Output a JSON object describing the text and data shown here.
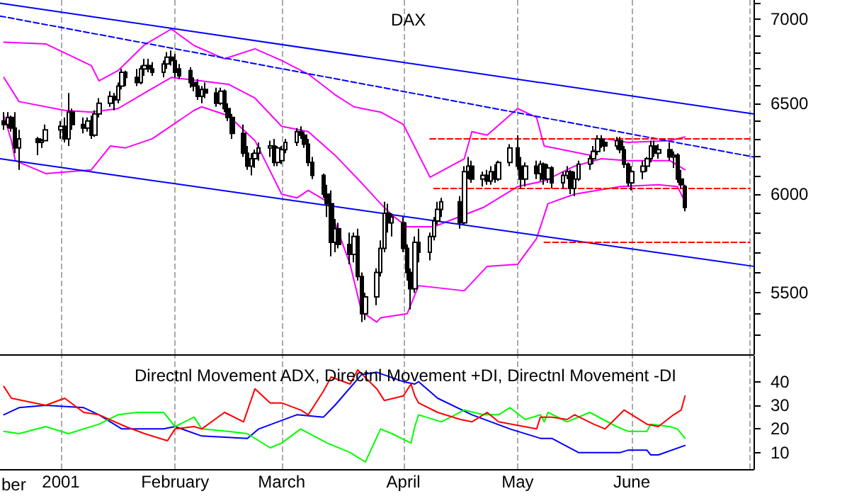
{
  "chart_data": [
    {
      "type": "candlestick",
      "title": "DAX",
      "color": "#000000",
      "log": true,
      "grid": "x",
      "tick_labels": "y",
      "marker": "none",
      "xlim": [
        "2000-12-17",
        "2001-07-03"
      ],
      "xticks": [
        {
          "value": "2001-01-02",
          "label": null
        },
        {
          "value": "2001-02-01",
          "label": null
        },
        {
          "value": "2001-03-01",
          "label": null
        },
        {
          "value": "2001-04-02",
          "label": null
        },
        {
          "value": "2001-05-02",
          "label": null
        },
        {
          "value": "2001-06-01",
          "label": null
        },
        {
          "value": "2001-07-02",
          "label": null
        }
      ],
      "ylim": [
        5210,
        7120
      ],
      "yticks": [
        {
          "value": 5300,
          "label": null
        },
        {
          "value": 5400,
          "label": null
        },
        5500,
        {
          "value": 5600,
          "label": null
        },
        {
          "value": 5700,
          "label": null
        },
        {
          "value": 5800,
          "label": null
        },
        {
          "value": 5900,
          "label": null
        },
        6000,
        {
          "value": 6100,
          "label": null
        },
        {
          "value": 6200,
          "label": null
        },
        {
          "value": 6300,
          "label": null
        },
        {
          "value": 6400,
          "label": null
        },
        6500,
        {
          "value": 6600,
          "label": null
        },
        {
          "value": 6700,
          "label": null
        },
        {
          "value": 6800,
          "label": null
        },
        {
          "value": 6900,
          "label": null
        },
        7000,
        {
          "value": 7100,
          "label": null
        }
      ],
      "x": [
        "2000-12-18",
        "2000-12-19",
        "2000-12-20",
        "2000-12-21",
        "2000-12-22",
        "2000-12-27",
        "2000-12-28",
        "2000-12-29",
        "2001-01-02",
        "2001-01-03",
        "2001-01-04",
        "2001-01-05",
        "2001-01-08",
        "2001-01-09",
        "2001-01-10",
        "2001-01-11",
        "2001-01-12",
        "2001-01-15",
        "2001-01-16",
        "2001-01-17",
        "2001-01-18",
        "2001-01-19",
        "2001-01-22",
        "2001-01-23",
        "2001-01-24",
        "2001-01-25",
        "2001-01-26",
        "2001-01-29",
        "2001-01-30",
        "2001-01-31",
        "2001-02-01",
        "2001-02-02",
        "2001-02-05",
        "2001-02-06",
        "2001-02-07",
        "2001-02-08",
        "2001-02-09",
        "2001-02-12",
        "2001-02-13",
        "2001-02-14",
        "2001-02-15",
        "2001-02-16",
        "2001-02-19",
        "2001-02-20",
        "2001-02-21",
        "2001-02-22",
        "2001-02-23",
        "2001-02-26",
        "2001-02-27",
        "2001-02-28",
        "2001-03-01",
        "2001-03-02",
        "2001-03-05",
        "2001-03-06",
        "2001-03-07",
        "2001-03-08",
        "2001-03-09",
        "2001-03-12",
        "2001-03-13",
        "2001-03-14",
        "2001-03-15",
        "2001-03-16",
        "2001-03-19",
        "2001-03-20",
        "2001-03-21",
        "2001-03-22",
        "2001-03-23",
        "2001-03-26",
        "2001-03-27",
        "2001-03-28",
        "2001-03-29",
        "2001-03-30",
        "2001-04-02",
        "2001-04-03",
        "2001-04-04",
        "2001-04-05",
        "2001-04-06",
        "2001-04-09",
        "2001-04-10",
        "2001-04-11",
        "2001-04-12",
        "2001-04-17",
        "2001-04-18",
        "2001-04-19",
        "2001-04-20",
        "2001-04-23",
        "2001-04-24",
        "2001-04-25",
        "2001-04-26",
        "2001-04-27",
        "2001-04-30",
        "2001-05-02",
        "2001-05-03",
        "2001-05-04",
        "2001-05-07",
        "2001-05-08",
        "2001-05-09",
        "2001-05-10",
        "2001-05-11",
        "2001-05-14",
        "2001-05-15",
        "2001-05-16",
        "2001-05-17",
        "2001-05-18",
        "2001-05-21",
        "2001-05-22",
        "2001-05-23",
        "2001-05-24",
        "2001-05-25",
        "2001-05-28",
        "2001-05-29",
        "2001-05-30",
        "2001-05-31",
        "2001-06-01",
        "2001-06-04",
        "2001-06-05",
        "2001-06-06",
        "2001-06-07",
        "2001-06-08",
        "2001-06-11",
        "2001-06-12",
        "2001-06-13",
        "2001-06-14",
        "2001-06-15"
      ],
      "ohlc": [
        [
          6400,
          6450,
          6350,
          6380
        ],
        [
          6380,
          6450,
          6360,
          6420
        ],
        [
          6420,
          6430,
          6340,
          6360
        ],
        [
          6360,
          6450,
          6220,
          6250
        ],
        [
          6250,
          6350,
          6130,
          6300
        ],
        [
          6300,
          6310,
          6210,
          6280
        ],
        [
          6280,
          6300,
          6250,
          6290
        ],
        [
          6290,
          6380,
          6290,
          6350
        ],
        [
          6350,
          6400,
          6300,
          6370
        ],
        [
          6370,
          6420,
          6280,
          6300
        ],
        [
          6300,
          6560,
          6260,
          6450
        ],
        [
          6450,
          6470,
          6350,
          6380
        ],
        [
          6380,
          6420,
          6330,
          6360
        ],
        [
          6360,
          6420,
          6340,
          6400
        ],
        [
          6400,
          6430,
          6300,
          6320
        ],
        [
          6320,
          6460,
          6310,
          6440
        ],
        [
          6440,
          6530,
          6420,
          6500
        ],
        [
          6500,
          6570,
          6480,
          6540
        ],
        [
          6540,
          6560,
          6460,
          6520
        ],
        [
          6520,
          6620,
          6500,
          6600
        ],
        [
          6600,
          6700,
          6580,
          6680
        ],
        [
          6680,
          6690,
          6600,
          6650
        ],
        [
          6650,
          6700,
          6600,
          6620
        ],
        [
          6620,
          6720,
          6610,
          6700
        ],
        [
          6700,
          6760,
          6660,
          6720
        ],
        [
          6720,
          6760,
          6680,
          6700
        ],
        [
          6700,
          6740,
          6660,
          6680
        ],
        [
          6680,
          6750,
          6650,
          6730
        ],
        [
          6730,
          6800,
          6700,
          6770
        ],
        [
          6770,
          6810,
          6720,
          6750
        ],
        [
          6750,
          6790,
          6650,
          6680
        ],
        [
          6700,
          6730,
          6640,
          6660
        ],
        [
          6690,
          6710,
          6590,
          6620
        ],
        [
          6620,
          6650,
          6570,
          6600
        ],
        [
          6600,
          6640,
          6520,
          6540
        ],
        [
          6540,
          6600,
          6500,
          6580
        ],
        [
          6580,
          6620,
          6530,
          6560
        ],
        [
          6560,
          6590,
          6480,
          6500
        ],
        [
          6500,
          6590,
          6490,
          6570
        ],
        [
          6570,
          6580,
          6450,
          6470
        ],
        [
          6470,
          6500,
          6400,
          6420
        ],
        [
          6420,
          6440,
          6300,
          6330
        ],
        [
          6330,
          6380,
          6200,
          6220
        ],
        [
          6220,
          6260,
          6130,
          6150
        ],
        [
          6150,
          6220,
          6100,
          6190
        ],
        [
          6190,
          6240,
          6140,
          6220
        ],
        [
          6220,
          6280,
          6180,
          6250
        ],
        [
          6250,
          6290,
          6200,
          6260
        ],
        [
          6260,
          6300,
          6150,
          6170
        ],
        [
          6170,
          6260,
          6150,
          6250
        ],
        [
          6180,
          6260,
          6160,
          6240
        ],
        [
          6240,
          6300,
          6220,
          6280
        ],
        [
          6280,
          6360,
          6260,
          6340
        ],
        [
          6340,
          6370,
          6300,
          6320
        ],
        [
          6320,
          6340,
          6250,
          6270
        ],
        [
          6270,
          6300,
          6150,
          6170
        ],
        [
          6170,
          6200,
          6080,
          6100
        ],
        [
          6100,
          6110,
          5980,
          6000
        ],
        [
          6000,
          6050,
          5880,
          5950
        ],
        [
          5950,
          6020,
          5680,
          5750
        ],
        [
          5750,
          5870,
          5700,
          5820
        ],
        [
          5820,
          5850,
          5720,
          5740
        ],
        [
          5740,
          5800,
          5640,
          5690
        ],
        [
          5690,
          5800,
          5650,
          5780
        ],
        [
          5780,
          5820,
          5560,
          5580
        ],
        [
          5580,
          5600,
          5360,
          5400
        ],
        [
          5400,
          5500,
          5370,
          5480
        ],
        [
          5480,
          5620,
          5440,
          5600
        ],
        [
          5600,
          5760,
          5580,
          5720
        ],
        [
          5720,
          5960,
          5700,
          5900
        ],
        [
          5900,
          5950,
          5800,
          5850
        ],
        [
          5850,
          5900,
          5780,
          5880
        ],
        [
          5850,
          5880,
          5700,
          5720
        ],
        [
          5720,
          5740,
          5560,
          5600
        ],
        [
          5600,
          5620,
          5420,
          5520
        ],
        [
          5520,
          5780,
          5500,
          5750
        ],
        [
          5750,
          5820,
          5650,
          5700
        ],
        [
          5700,
          5800,
          5660,
          5780
        ],
        [
          5780,
          5880,
          5760,
          5860
        ],
        [
          5860,
          5960,
          5840,
          5920
        ],
        [
          5920,
          5980,
          5880,
          5960
        ],
        [
          5960,
          5990,
          5820,
          5850
        ],
        [
          5850,
          6150,
          5840,
          6120
        ],
        [
          6120,
          6200,
          6080,
          6150
        ],
        [
          6150,
          6180,
          6060,
          6080
        ],
        [
          6080,
          6120,
          6040,
          6100
        ],
        [
          6100,
          6130,
          6050,
          6070
        ],
        [
          6070,
          6150,
          6050,
          6120
        ],
        [
          6120,
          6160,
          6060,
          6080
        ],
        [
          6080,
          6180,
          6070,
          6170
        ],
        [
          6170,
          6270,
          6150,
          6250
        ],
        [
          6250,
          6320,
          6130,
          6150
        ],
        [
          6150,
          6200,
          6030,
          6080
        ],
        [
          6080,
          6170,
          6040,
          6150
        ],
        [
          6150,
          6180,
          6080,
          6110
        ],
        [
          6110,
          6180,
          6070,
          6160
        ],
        [
          6160,
          6170,
          6050,
          6080
        ],
        [
          6080,
          6160,
          6060,
          6140
        ],
        [
          6140,
          6150,
          6030,
          6060
        ],
        [
          6060,
          6120,
          6030,
          6100
        ],
        [
          6100,
          6150,
          6080,
          6120
        ],
        [
          6120,
          6130,
          6000,
          6030
        ],
        [
          6030,
          6120,
          5990,
          6080
        ],
        [
          6080,
          6180,
          6070,
          6160
        ],
        [
          6160,
          6210,
          6130,
          6190
        ],
        [
          6190,
          6260,
          6160,
          6230
        ],
        [
          6230,
          6320,
          6210,
          6300
        ],
        [
          6300,
          6320,
          6250,
          6280
        ],
        [
          6280,
          6300,
          6230,
          6260
        ],
        [
          6260,
          6310,
          6240,
          6290
        ],
        [
          6290,
          6310,
          6220,
          6240
        ],
        [
          6240,
          6260,
          6140,
          6160
        ],
        [
          6160,
          6170,
          6040,
          6060
        ],
        [
          6060,
          6150,
          6020,
          6120
        ],
        [
          6120,
          6180,
          6080,
          6150
        ],
        [
          6150,
          6200,
          6120,
          6190
        ],
        [
          6190,
          6290,
          6170,
          6260
        ],
        [
          6260,
          6290,
          6200,
          6220
        ],
        [
          6220,
          6270,
          6190,
          6240
        ],
        [
          6240,
          6280,
          6180,
          6200
        ],
        [
          6200,
          6230,
          6140,
          6210
        ],
        [
          6210,
          6220,
          6060,
          6080
        ],
        [
          6080,
          6130,
          6030,
          6050
        ],
        [
          6040,
          6050,
          5910,
          5930
        ]
      ],
      "series": [
        {
          "type": "line",
          "color": "#ff00ff",
          "x": [
            "2000-12-18",
            "2000-12-29",
            "2001-01-10",
            "2001-01-12",
            "2001-01-17",
            "2001-01-24",
            "2001-01-31",
            "2001-02-06",
            "2001-02-14",
            "2001-02-22",
            "2001-03-01",
            "2001-03-08",
            "2001-03-15",
            "2001-03-20",
            "2001-03-27",
            "2001-04-02",
            "2001-04-09",
            "2001-04-18",
            "2001-04-20",
            "2001-04-24",
            "2001-05-02",
            "2001-05-07",
            "2001-05-09",
            "2001-05-21",
            "2001-05-25",
            "2001-05-31",
            "2001-06-11",
            "2001-06-15"
          ],
          "values": [
            6860,
            6850,
            6720,
            6630,
            6690,
            6845,
            6940,
            6840,
            6760,
            6820,
            6750,
            6670,
            6550,
            6480,
            6450,
            6380,
            6090,
            6190,
            6340,
            6320,
            6470,
            6420,
            6260,
            6210,
            6300,
            6280,
            6290,
            6310
          ]
        },
        {
          "type": "line",
          "color": "#fe00fe",
          "x": [
            "2000-12-18",
            "2000-12-22",
            "2001-01-03",
            "2001-01-10",
            "2001-01-17",
            "2001-01-24",
            "2001-01-31",
            "2001-02-08",
            "2001-02-15",
            "2001-02-22",
            "2001-03-01",
            "2001-03-08",
            "2001-03-15",
            "2001-03-22",
            "2001-03-27",
            "2001-03-30",
            "2001-04-03",
            "2001-04-10",
            "2001-04-23",
            "2001-05-02",
            "2001-05-09",
            "2001-05-17",
            "2001-05-24",
            "2001-05-31",
            "2001-06-11",
            "2001-06-15"
          ],
          "values": [
            6650,
            6510,
            6460,
            6450,
            6470,
            6560,
            6650,
            6630,
            6610,
            6530,
            6370,
            6340,
            6210,
            6060,
            5950,
            5890,
            5830,
            5830,
            5930,
            6040,
            6070,
            6150,
            6190,
            6180,
            6180,
            6130
          ]
        },
        {
          "type": "line",
          "color": "#fd00fd",
          "x": [
            "2000-12-18",
            "2000-12-20",
            "2000-12-21",
            "2000-12-29",
            "2001-01-10",
            "2001-01-15",
            "2001-01-19",
            "2001-01-26",
            "2001-02-06",
            "2001-02-08",
            "2001-02-15",
            "2001-02-22",
            "2001-03-01",
            "2001-03-05",
            "2001-03-08",
            "2001-03-13",
            "2001-03-19",
            "2001-03-22",
            "2001-03-26",
            "2001-03-27",
            "2001-04-03",
            "2001-04-06",
            "2001-04-18",
            "2001-04-24",
            "2001-05-02",
            "2001-05-07",
            "2001-05-10",
            "2001-05-17",
            "2001-05-29",
            "2001-06-08",
            "2001-06-13",
            "2001-06-15"
          ],
          "values": [
            6430,
            6290,
            6180,
            6110,
            6130,
            6260,
            6250,
            6300,
            6460,
            6480,
            6430,
            6290,
            6000,
            5980,
            6020,
            5960,
            5640,
            5410,
            5360,
            5380,
            5400,
            5535,
            5510,
            5630,
            5640,
            5770,
            5950,
            6000,
            6040,
            6050,
            6040,
            5960
          ]
        },
        {
          "type": "line",
          "color": "#0000ff",
          "line_style": "solid",
          "x": [
            "2000-12-17",
            "2001-07-03"
          ],
          "values": [
            7100,
            6440
          ]
        },
        {
          "type": "line",
          "color": "#0000fe",
          "line_style": "dashed",
          "x": [
            "2000-12-17",
            "2001-07-03"
          ],
          "values": [
            7020,
            6200
          ]
        },
        {
          "type": "line",
          "color": "#0000fd",
          "line_style": "solid",
          "x": [
            "2000-12-17",
            "2001-07-03"
          ],
          "values": [
            6190,
            5630
          ]
        },
        {
          "type": "line",
          "color": "#ff0000",
          "line_style": "dashed",
          "x": [
            "2001-04-09",
            "2001-07-02"
          ],
          "values": [
            6300,
            6300
          ]
        },
        {
          "type": "line",
          "color": "#fe0000",
          "line_style": "dashed",
          "x": [
            "2001-04-10",
            "2001-07-02"
          ],
          "values": [
            6030,
            6030
          ]
        },
        {
          "type": "line",
          "color": "#fd0000",
          "line_style": "dashed",
          "x": [
            "2001-05-09",
            "2001-07-02"
          ],
          "values": [
            5750,
            5750
          ]
        }
      ]
    },
    {
      "type": "line",
      "title": "Directnl Movement ADX, Directnl Movement +DI, Directnl Movement -DI",
      "grid": "x",
      "marker": "none",
      "xlim": [
        "2000-12-17",
        "2001-07-03"
      ],
      "xticks": [
        {
          "value": "2001-01-02",
          "label": "2001"
        },
        {
          "value": "2001-02-01",
          "label": "February"
        },
        {
          "value": "2001-03-01",
          "label": "March"
        },
        {
          "value": "2001-04-02",
          "label": "April"
        },
        {
          "value": "2001-05-02",
          "label": "May"
        },
        {
          "value": "2001-06-01",
          "label": "June"
        },
        {
          "value": "2001-07-02",
          "label": null
        }
      ],
      "annotations": [
        "ber"
      ],
      "ylim": [
        3,
        51
      ],
      "yticks": [
        10,
        20,
        30,
        40
      ],
      "series": [
        {
          "color": "#0000ff",
          "x": [
            "2000-12-18",
            "2000-12-22",
            "2000-12-29",
            "2001-01-08",
            "2001-01-12",
            "2001-01-18",
            "2001-01-29",
            "2001-02-01",
            "2001-02-08",
            "2001-02-20",
            "2001-02-23",
            "2001-03-05",
            "2001-03-12",
            "2001-03-15",
            "2001-03-22",
            "2001-03-26",
            "2001-04-02",
            "2001-04-05",
            "2001-04-06",
            "2001-04-11",
            "2001-04-20",
            "2001-04-30",
            "2001-05-08",
            "2001-05-11",
            "2001-05-18",
            "2001-05-29",
            "2001-05-31",
            "2001-06-05",
            "2001-06-06",
            "2001-06-08",
            "2001-06-15"
          ],
          "values": [
            26,
            29,
            30,
            29,
            26,
            20,
            20,
            21,
            17,
            16,
            20,
            26,
            25,
            30,
            43,
            44,
            40,
            39,
            40,
            33,
            26,
            20,
            16,
            16,
            10,
            10,
            11,
            11,
            9,
            9,
            13
          ]
        },
        {
          "color": "#00ff00",
          "x": [
            "2000-12-18",
            "2000-12-22",
            "2000-12-29",
            "2001-01-04",
            "2001-01-12",
            "2001-01-17",
            "2001-01-22",
            "2001-01-29",
            "2001-02-01",
            "2001-02-06",
            "2001-02-08",
            "2001-02-15",
            "2001-02-20",
            "2001-02-26",
            "2001-03-01",
            "2001-03-06",
            "2001-03-13",
            "2001-03-19",
            "2001-03-23",
            "2001-03-27",
            "2001-03-30",
            "2001-04-04",
            "2001-04-05",
            "2001-04-06",
            "2001-04-12",
            "2001-04-18",
            "2001-04-23",
            "2001-04-27",
            "2001-04-30",
            "2001-05-04",
            "2001-05-08",
            "2001-05-09",
            "2001-05-10",
            "2001-05-15",
            "2001-05-21",
            "2001-05-28",
            "2001-05-31",
            "2001-06-05",
            "2001-06-06",
            "2001-06-11",
            "2001-06-13",
            "2001-06-15"
          ],
          "values": [
            19,
            18,
            21,
            18,
            22,
            26,
            27,
            27,
            21,
            25,
            20,
            19,
            18,
            12,
            14,
            20,
            14,
            10,
            6,
            20,
            18,
            14,
            21,
            26,
            23,
            28,
            26,
            26,
            29,
            24,
            26,
            23,
            27,
            23,
            27,
            21,
            19,
            19,
            22,
            21,
            20,
            16
          ]
        },
        {
          "color": "#ff0000",
          "x": [
            "2000-12-18",
            "2000-12-20",
            "2000-12-29",
            "2001-01-03",
            "2001-01-08",
            "2001-01-12",
            "2001-01-19",
            "2001-01-24",
            "2001-01-30",
            "2001-02-01",
            "2001-02-06",
            "2001-02-08",
            "2001-02-14",
            "2001-02-19",
            "2001-02-22",
            "2001-02-26",
            "2001-03-01",
            "2001-03-06",
            "2001-03-08",
            "2001-03-12",
            "2001-03-14",
            "2001-03-19",
            "2001-03-21",
            "2001-03-26",
            "2001-03-28",
            "2001-04-02",
            "2001-04-04",
            "2001-04-05",
            "2001-04-06",
            "2001-04-11",
            "2001-04-17",
            "2001-04-20",
            "2001-04-24",
            "2001-04-27",
            "2001-05-07",
            "2001-05-08",
            "2001-05-11",
            "2001-05-15",
            "2001-05-17",
            "2001-05-22",
            "2001-05-25",
            "2001-05-30",
            "2001-06-05",
            "2001-06-08",
            "2001-06-12",
            "2001-06-14",
            "2001-06-15"
          ],
          "values": [
            38,
            33,
            30,
            33,
            27,
            26,
            21,
            18,
            15,
            20,
            21,
            20,
            27,
            23,
            37,
            31,
            31,
            28,
            26,
            36,
            42,
            39,
            45,
            37,
            32,
            34,
            39,
            34,
            31,
            27,
            24,
            23,
            27,
            23,
            20,
            25,
            25,
            24,
            26,
            22,
            20,
            28,
            22,
            21,
            26,
            28,
            34
          ]
        }
      ]
    }
  ]
}
